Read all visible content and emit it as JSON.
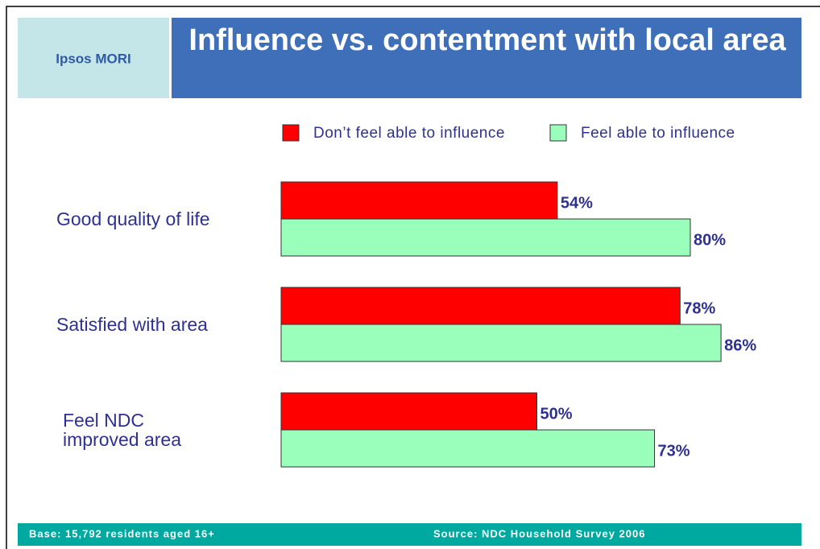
{
  "brand": "Ipsos MORI",
  "footer": {
    "base": "Base: 15,792 residents aged 16+",
    "source": "Source: NDC Household Survey 2006"
  },
  "chart_data": {
    "type": "barh",
    "title": "Influence vs. contentment with local area",
    "categories": [
      "Good quality of life",
      "Satisfied with area",
      "Feel NDC\nimproved area"
    ],
    "series": [
      {
        "name": "Don’t feel able to influence",
        "color": "#ff0000",
        "values": [
          54,
          78,
          50
        ],
        "value_labels": [
          "54%",
          "78%",
          "50%"
        ]
      },
      {
        "name": "Feel able to influence",
        "color": "#99ffbb",
        "values": [
          80,
          86,
          73
        ],
        "value_labels": [
          "80%",
          "86%",
          "73%"
        ]
      }
    ],
    "legend": "top"
  }
}
